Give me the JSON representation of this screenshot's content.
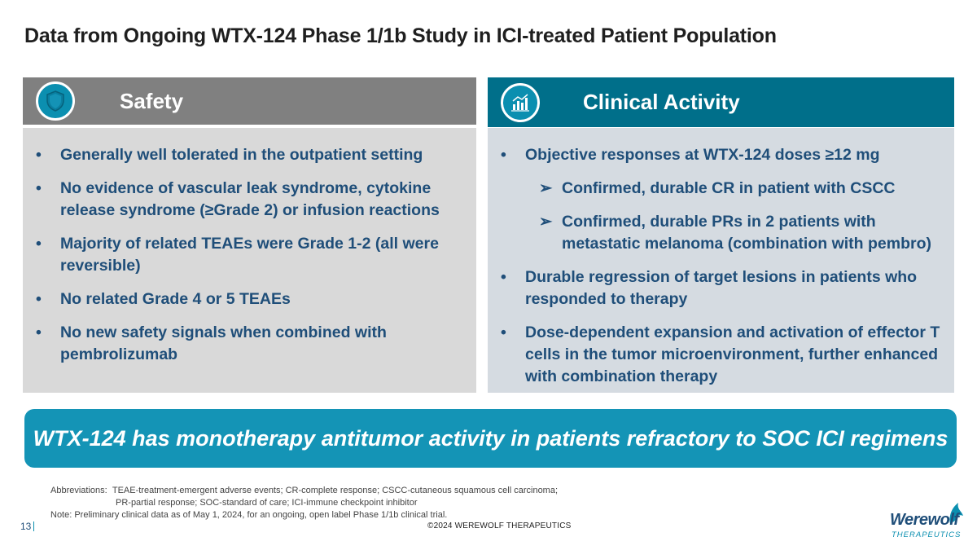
{
  "title": "Data from Ongoing WTX-124 Phase 1/1b Study in ICI-treated Patient Population",
  "safety": {
    "heading": "Safety",
    "bullets": [
      "Generally well tolerated in the outpatient setting",
      "No evidence of vascular leak syndrome, cytokine release syndrome (≥Grade 2) or infusion reactions",
      "Majority of related TEAEs were Grade 1-2 (all were reversible)",
      "No related Grade 4 or 5 TEAEs",
      "No new safety signals when combined with pembrolizumab"
    ]
  },
  "clinical": {
    "heading": "Clinical Activity",
    "bullet_1": "Objective responses at WTX-124 doses ≥12 mg",
    "sub_1": "Confirmed, durable CR in patient with CSCC",
    "sub_2": "Confirmed, durable PRs in 2 patients with metastatic melanoma (combination with pembro)",
    "bullet_2": "Durable regression of target lesions in patients who responded to therapy",
    "bullet_3": "Dose-dependent expansion and activation of effector T cells in the tumor microenvironment, further enhanced with combination therapy"
  },
  "banner": "WTX-124 has monotherapy antitumor activity in patients refractory to SOC ICI regimens",
  "footnotes": {
    "abbrev_label": "Abbreviations:",
    "abbrev_line1": "TEAE-treatment-emergent adverse events; CR-complete response; CSCC-cutaneous squamous cell carcinoma;",
    "abbrev_line2": "PR-partial response; SOC-standard of care; ICI-immune checkpoint inhibitor",
    "note": "Note: Preliminary clinical data as of May 1, 2024, for an ongoing, open label Phase 1/1b clinical trial."
  },
  "page_number": "13",
  "copyright": "©2024 WEREWOLF THERAPEUTICS",
  "logo": {
    "name": "Werewolf",
    "sub": "THERAPEUTICS"
  },
  "icons": {
    "safety": "shield-icon",
    "clinical": "chart-icon"
  },
  "colors": {
    "safety_header": "#808080",
    "clinical_header": "#006f8a",
    "banner": "#1494b6",
    "text": "#1f4e79"
  }
}
